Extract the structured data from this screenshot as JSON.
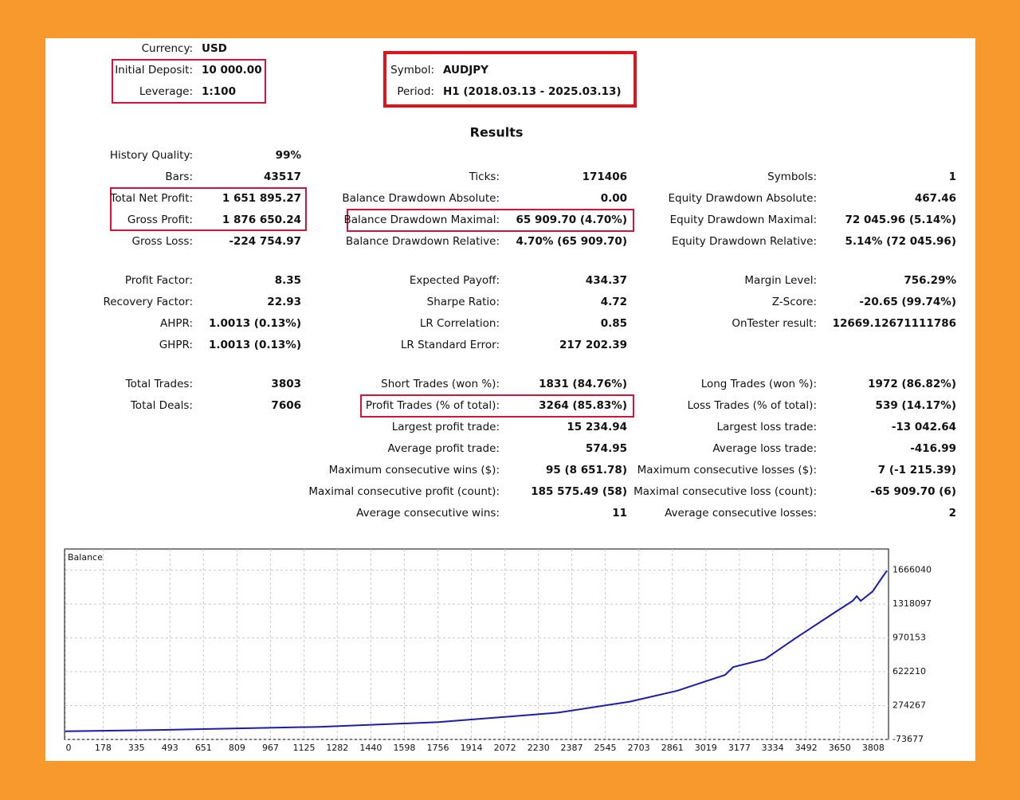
{
  "header": {
    "currency": {
      "label": "Currency:",
      "value": "USD"
    },
    "initial_deposit": {
      "label": "Initial Deposit:",
      "value": "10 000.00"
    },
    "leverage": {
      "label": "Leverage:",
      "value": "1:100"
    },
    "symbol": {
      "label": "Symbol:",
      "value": "AUDJPY"
    },
    "period": {
      "label": "Period:",
      "value": "H1 (2018.03.13 - 2025.03.13)"
    }
  },
  "results": {
    "title": "Results",
    "columns": [
      [
        {
          "label": "History Quality:",
          "value": "99%"
        },
        {
          "label": "Bars:",
          "value": "43517"
        },
        {
          "label": "Total Net Profit:",
          "value": "1 651 895.27"
        },
        {
          "label": "Gross Profit:",
          "value": "1 876 650.24"
        },
        {
          "label": "Gross Loss:",
          "value": "-224 754.97"
        },
        {
          "label": "Profit Factor:",
          "value": "8.35"
        },
        {
          "label": "Recovery Factor:",
          "value": "22.93"
        },
        {
          "label": "AHPR:",
          "value": "1.0013 (0.13%)"
        },
        {
          "label": "GHPR:",
          "value": "1.0013 (0.13%)"
        },
        {
          "label": "Total Trades:",
          "value": "3803"
        },
        {
          "label": "Total Deals:",
          "value": "7606"
        }
      ],
      [
        {
          "label": "Ticks:",
          "value": "171406"
        },
        {
          "label": "Balance Drawdown Absolute:",
          "value": "0.00"
        },
        {
          "label": "Balance Drawdown Maximal:",
          "value": "65 909.70 (4.70%)"
        },
        {
          "label": "Balance Drawdown Relative:",
          "value": "4.70% (65 909.70)"
        },
        {
          "label": "Expected Payoff:",
          "value": "434.37"
        },
        {
          "label": "Sharpe Ratio:",
          "value": "4.72"
        },
        {
          "label": "LR Correlation:",
          "value": "0.85"
        },
        {
          "label": "LR Standard Error:",
          "value": "217 202.39"
        },
        {
          "label": "Short Trades (won %):",
          "value": "1831 (84.76%)"
        },
        {
          "label": "Profit Trades (% of total):",
          "value": "3264 (85.83%)"
        },
        {
          "label": "Largest profit trade:",
          "value": "15 234.94"
        },
        {
          "label": "Average profit trade:",
          "value": "574.95"
        },
        {
          "label": "Maximum consecutive wins ($):",
          "value": "95 (8 651.78)"
        },
        {
          "label": "Maximal consecutive profit (count):",
          "value": "185 575.49 (58)"
        },
        {
          "label": "Average consecutive wins:",
          "value": "11"
        }
      ],
      [
        {
          "label": "Symbols:",
          "value": "1"
        },
        {
          "label": "Equity Drawdown Absolute:",
          "value": "467.46"
        },
        {
          "label": "Equity Drawdown Maximal:",
          "value": "72 045.96 (5.14%)"
        },
        {
          "label": "Equity Drawdown Relative:",
          "value": "5.14% (72 045.96)"
        },
        {
          "label": "Margin Level:",
          "value": "756.29%"
        },
        {
          "label": "Z-Score:",
          "value": "-20.65 (99.74%)"
        },
        {
          "label": "OnTester result:",
          "value": "12669.12671111786"
        },
        {
          "label": "Long Trades (won %):",
          "value": "1972 (86.82%)"
        },
        {
          "label": "Loss Trades (% of total):",
          "value": "539 (14.17%)"
        },
        {
          "label": "Largest loss trade:",
          "value": "-13 042.64"
        },
        {
          "label": "Average loss trade:",
          "value": "-416.99"
        },
        {
          "label": "Maximum consecutive losses ($):",
          "value": "7 (-1 215.39)"
        },
        {
          "label": "Maximal consecutive loss (count):",
          "value": "-65 909.70 (6)"
        },
        {
          "label": "Average consecutive losses:",
          "value": "2"
        }
      ]
    ]
  },
  "chart_data": {
    "type": "line",
    "x": [
      0,
      443,
      1195,
      1758,
      2322,
      2660,
      2885,
      3110,
      3148,
      3298,
      3449,
      3636,
      3711,
      3730,
      3749,
      3805,
      3843,
      3873
    ],
    "series": [
      {
        "name": "Balance",
        "color": "#1c1ca8",
        "values": [
          10000,
          23400,
          55800,
          104300,
          201500,
          314700,
          428000,
          589900,
          670800,
          751700,
          978300,
          1245300,
          1350500,
          1399100,
          1350500,
          1447600,
          1569000,
          1661895
        ]
      }
    ],
    "xlim": [
      0,
      3880
    ],
    "ylim": [
      -73677,
      1884000
    ],
    "xticks": [
      0,
      178,
      335,
      493,
      651,
      809,
      967,
      1125,
      1282,
      1440,
      1598,
      1756,
      1914,
      2072,
      2230,
      2387,
      2545,
      2703,
      2861,
      3019,
      3177,
      3334,
      3492,
      3650,
      3808
    ],
    "yticks": [
      -73677,
      274267,
      622210,
      970153,
      1318097,
      1666040
    ],
    "grid": true
  }
}
